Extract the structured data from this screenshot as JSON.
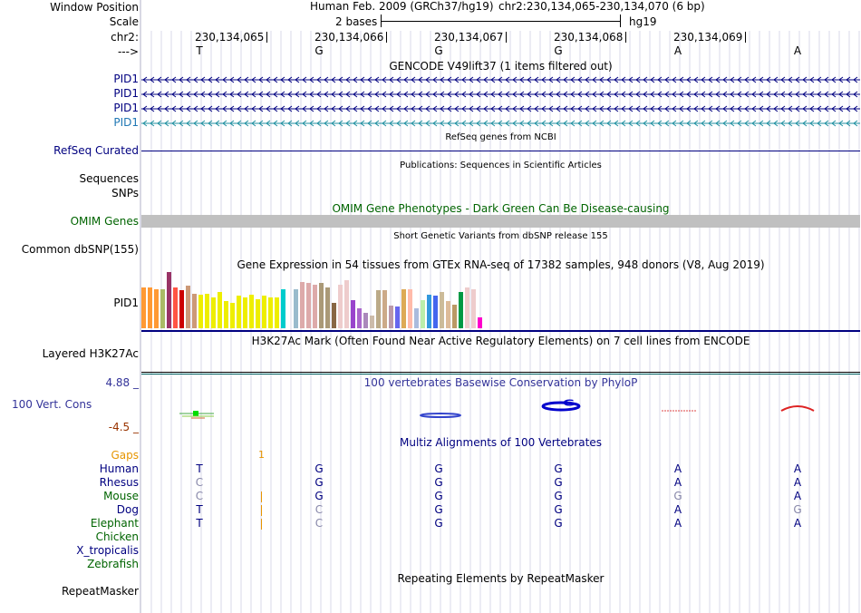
{
  "header": {
    "window_position_label": "Window Position",
    "scale_label": "Scale",
    "chrom_label": "chr2:",
    "strand_label": "--->",
    "assembly_title": "Human Feb. 2009 (GRCh37/hg19)",
    "position": "chr2:230,134,065-230,134,070 (6 bp)",
    "scale_text": "2 bases",
    "db": "hg19",
    "coords": [
      "230,134,065",
      "230,134,066",
      "230,134,067",
      "230,134,068",
      "230,134,069"
    ],
    "bases": [
      "T",
      "G",
      "G",
      "G",
      "A",
      "A"
    ]
  },
  "tracks": {
    "gencode": {
      "title": "GENCODE V49lift37 (1 items filtered out)",
      "items": [
        "PID1",
        "PID1",
        "PID1",
        "PID1"
      ]
    },
    "refseq": {
      "title": "RefSeq genes from NCBI",
      "label": "RefSeq Curated"
    },
    "publications": {
      "title": "Publications: Sequences in Scientific Articles",
      "labels": [
        "Sequences",
        "SNPs"
      ]
    },
    "omim": {
      "title": "OMIM Gene Phenotypes - Dark Green Can Be Disease-causing",
      "label": "OMIM Genes"
    },
    "dbsnp": {
      "title": "Short Genetic Variants from dbSNP release 155",
      "label": "Common dbSNP(155)"
    },
    "gtex": {
      "title": "Gene Expression in 54 tissues from GTEx RNA-seq of 17382 samples, 948 donors (V8, Aug 2019)",
      "label": "PID1",
      "bars": [
        {
          "c": "#ff9933",
          "v": 0.72
        },
        {
          "c": "#ff9933",
          "v": 0.72
        },
        {
          "c": "#ff9933",
          "v": 0.7
        },
        {
          "c": "#aabb66",
          "v": 0.7
        },
        {
          "c": "#993366",
          "v": 1.0
        },
        {
          "c": "#ff5544",
          "v": 0.72
        },
        {
          "c": "#cc0000",
          "v": 0.68
        },
        {
          "c": "#cc9977",
          "v": 0.75
        },
        {
          "c": "#cc9977",
          "v": 0.62
        },
        {
          "c": "#eeee00",
          "v": 0.6
        },
        {
          "c": "#eeee00",
          "v": 0.62
        },
        {
          "c": "#eeee00",
          "v": 0.55
        },
        {
          "c": "#eeee00",
          "v": 0.65
        },
        {
          "c": "#eeee00",
          "v": 0.48
        },
        {
          "c": "#eeee00",
          "v": 0.45
        },
        {
          "c": "#eeee00",
          "v": 0.58
        },
        {
          "c": "#eeee00",
          "v": 0.55
        },
        {
          "c": "#eeee00",
          "v": 0.6
        },
        {
          "c": "#eeee00",
          "v": 0.52
        },
        {
          "c": "#eeee00",
          "v": 0.58
        },
        {
          "c": "#eeee00",
          "v": 0.55
        },
        {
          "c": "#eeee00",
          "v": 0.55
        },
        {
          "c": "#00cccc",
          "v": 0.7
        },
        {
          "c": "#aaaaff",
          "v": 0.0
        },
        {
          "c": "#99bbcc",
          "v": 0.7
        },
        {
          "c": "#ddaaaa",
          "v": 0.82
        },
        {
          "c": "#ddaaaa",
          "v": 0.8
        },
        {
          "c": "#ddaaaa",
          "v": 0.78
        },
        {
          "c": "#aa9977",
          "v": 0.8
        },
        {
          "c": "#aa9977",
          "v": 0.72
        },
        {
          "c": "#886644",
          "v": 0.45
        },
        {
          "c": "#eecccc",
          "v": 0.78
        },
        {
          "c": "#eecccc",
          "v": 0.85
        },
        {
          "c": "#9944cc",
          "v": 0.5
        },
        {
          "c": "#aa66cc",
          "v": 0.35
        },
        {
          "c": "#aa88bb",
          "v": 0.28
        },
        {
          "c": "#ccbbaa",
          "v": 0.22
        },
        {
          "c": "#bbaa88",
          "v": 0.68
        },
        {
          "c": "#ccaa88",
          "v": 0.68
        },
        {
          "c": "#bb99aa",
          "v": 0.4
        },
        {
          "c": "#6666ee",
          "v": 0.38
        },
        {
          "c": "#ddaa55",
          "v": 0.7
        },
        {
          "c": "#ffbbaa",
          "v": 0.7
        },
        {
          "c": "#aabbdd",
          "v": 0.35
        },
        {
          "c": "#bbeeaa",
          "v": 0.5
        },
        {
          "c": "#3399dd",
          "v": 0.6
        },
        {
          "c": "#4466ee",
          "v": 0.58
        },
        {
          "c": "#ccbb99",
          "v": 0.65
        },
        {
          "c": "#ddbb99",
          "v": 0.48
        },
        {
          "c": "#bb9966",
          "v": 0.42
        },
        {
          "c": "#009944",
          "v": 0.65
        },
        {
          "c": "#eecccc",
          "v": 0.72
        },
        {
          "c": "#eecccc",
          "v": 0.7
        },
        {
          "c": "#ff00cc",
          "v": 0.2
        }
      ]
    },
    "h3k27ac": {
      "title": "H3K27Ac Mark (Often Found Near Active Regulatory Elements) on 7 cell lines from ENCODE",
      "label": "Layered H3K27Ac"
    },
    "phylop": {
      "title": "100 vertebrates Basewise Conservation by PhyloP",
      "label": "100 Vert. Cons",
      "max": "4.88 _",
      "min": "-4.5 _"
    },
    "multiz": {
      "title": "Multiz Alignments of 100 Vertebrates",
      "gaps_label": "Gaps",
      "gaps_value": "1",
      "species": [
        {
          "name": "Human",
          "bases": [
            "T",
            "G",
            "G",
            "G",
            "A",
            "A"
          ]
        },
        {
          "name": "Rhesus",
          "bases": [
            "C",
            "G",
            "G",
            "G",
            "A",
            "A"
          ]
        },
        {
          "name": "Mouse",
          "bases": [
            "C",
            "G",
            "G",
            "G",
            "G",
            "A"
          ]
        },
        {
          "name": "Dog",
          "bases": [
            "T",
            "C",
            "G",
            "G",
            "A",
            "G"
          ]
        },
        {
          "name": "Elephant",
          "bases": [
            "T",
            "C",
            "G",
            "G",
            "A",
            "A"
          ]
        },
        {
          "name": "Chicken",
          "bases": [
            "",
            "",
            "",
            "",
            "",
            ""
          ]
        },
        {
          "name": "X_tropicalis",
          "bases": [
            "",
            "",
            "",
            "",
            "",
            ""
          ]
        },
        {
          "name": "Zebrafish",
          "bases": [
            "",
            "",
            "",
            "",
            "",
            ""
          ]
        }
      ]
    },
    "repeatmasker": {
      "title": "Repeating Elements by RepeatMasker",
      "label": "RepeatMasker"
    }
  },
  "colors": {
    "navy": "#000080",
    "green": "#006400",
    "gaps": "#e69500",
    "phylop_title": "#333399",
    "phylop_min": "#993300"
  }
}
